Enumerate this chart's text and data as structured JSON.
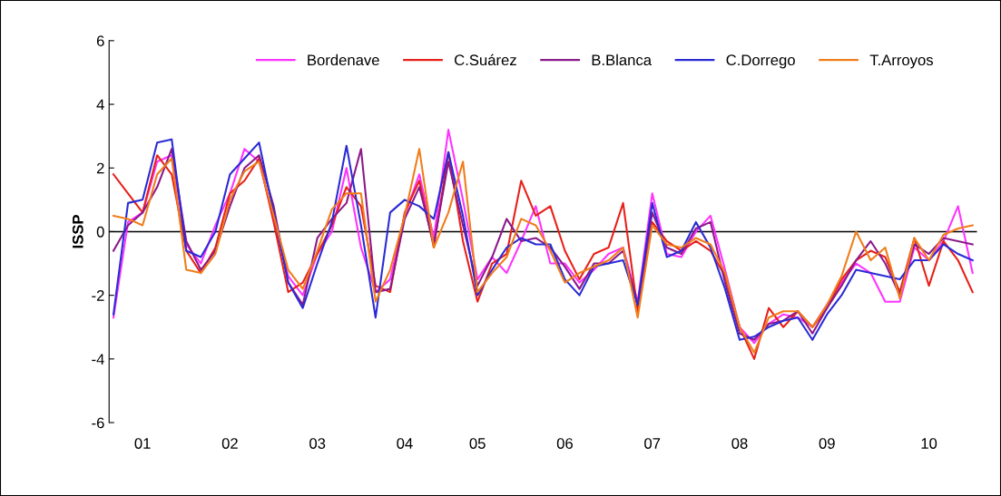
{
  "chart_data": {
    "type": "line",
    "ylabel": "ISSP",
    "categories": [
      null,
      null,
      "01",
      null,
      null,
      null,
      null,
      null,
      "02",
      null,
      null,
      null,
      null,
      null,
      "03",
      null,
      null,
      null,
      null,
      null,
      "04",
      null,
      null,
      null,
      null,
      "05",
      null,
      null,
      null,
      null,
      null,
      "06",
      null,
      null,
      null,
      null,
      null,
      "07",
      null,
      null,
      null,
      null,
      null,
      "08",
      null,
      null,
      null,
      null,
      null,
      "09",
      null,
      null,
      null,
      null,
      null,
      null,
      "10",
      null,
      null,
      null
    ],
    "series": [
      {
        "name": "Bordenave",
        "color": "#ff33ff",
        "values": [
          -2.7,
          0.3,
          0.6,
          2.2,
          2.4,
          -0.4,
          -1.0,
          0.2,
          1.2,
          2.6,
          2.2,
          0.4,
          -1.4,
          -2.0,
          -0.7,
          0.0,
          2.0,
          -0.5,
          -1.9,
          -1.5,
          0.5,
          1.8,
          -0.2,
          3.2,
          1.0,
          -1.5,
          -0.8,
          -1.3,
          -0.3,
          0.8,
          -1.0,
          -1.0,
          -1.6,
          -1.2,
          -0.7,
          -0.5,
          -2.2,
          1.2,
          -0.7,
          -0.8,
          0.0,
          0.5,
          -1.2,
          -3.0,
          -3.5,
          -2.9,
          -2.6,
          -2.7,
          -3.0,
          -2.3,
          -1.6,
          -1.0,
          -1.3,
          -2.2,
          -2.2,
          -0.5,
          -0.9,
          -0.3,
          0.8,
          -1.3
        ]
      },
      {
        "name": "C.Suárez",
        "color": "#e8201a",
        "values": [
          1.8,
          1.2,
          0.6,
          2.4,
          1.8,
          -0.6,
          -1.3,
          -0.5,
          1.2,
          1.6,
          2.3,
          0.3,
          -1.9,
          -1.6,
          -0.7,
          0.2,
          1.4,
          0.8,
          -1.7,
          -1.9,
          0.6,
          1.6,
          -0.5,
          2.5,
          -0.3,
          -2.2,
          -1.0,
          -0.7,
          1.6,
          0.5,
          0.8,
          -0.6,
          -1.5,
          -0.7,
          -0.5,
          0.9,
          -2.5,
          0.3,
          -0.3,
          -0.6,
          -0.3,
          -0.6,
          -1.4,
          -3.0,
          -4.0,
          -2.4,
          -3.0,
          -2.5,
          -3.0,
          -2.4,
          -1.5,
          -0.9,
          -0.6,
          -0.8,
          -1.9,
          -0.2,
          -1.7,
          -0.3,
          -0.9,
          -1.9
        ]
      },
      {
        "name": "B.Blanca",
        "color": "#8b1a8b",
        "values": [
          -0.6,
          0.2,
          0.6,
          1.4,
          2.6,
          -0.3,
          -1.2,
          -0.6,
          0.8,
          2.0,
          2.4,
          0.8,
          -1.6,
          -2.3,
          -0.2,
          0.4,
          0.9,
          2.6,
          -1.9,
          -1.8,
          0.4,
          1.4,
          -0.4,
          2.2,
          0.2,
          -1.7,
          -0.8,
          0.4,
          -0.3,
          -0.2,
          -0.5,
          -1.1,
          -1.8,
          -1.0,
          -1.0,
          -0.6,
          -2.3,
          0.6,
          -0.5,
          -0.7,
          0.1,
          0.3,
          -1.6,
          -3.2,
          -3.4,
          -2.9,
          -2.8,
          -2.5,
          -3.2,
          -2.4,
          -1.7,
          -0.9,
          -0.3,
          -1.0,
          -2.0,
          -0.4,
          -0.7,
          -0.2,
          -0.3,
          -0.4
        ]
      },
      {
        "name": "C.Dorrego",
        "color": "#2b2bd6",
        "values": [
          -2.6,
          0.9,
          1.0,
          2.8,
          2.9,
          -0.6,
          -0.8,
          0.0,
          1.8,
          2.3,
          2.8,
          0.6,
          -1.6,
          -2.4,
          -1.0,
          0.3,
          2.7,
          0.2,
          -2.7,
          0.6,
          1.0,
          0.8,
          0.4,
          2.5,
          0.5,
          -2.0,
          -1.2,
          -0.5,
          -0.2,
          -0.4,
          -0.4,
          -1.5,
          -2.0,
          -1.1,
          -1.0,
          -0.9,
          -2.3,
          0.9,
          -0.8,
          -0.6,
          0.3,
          -0.5,
          -1.8,
          -3.4,
          -3.3,
          -3.0,
          -2.8,
          -2.7,
          -3.4,
          -2.6,
          -2.0,
          -1.2,
          -1.3,
          -1.4,
          -1.5,
          -0.9,
          -0.9,
          -0.4,
          -0.7,
          -0.9
        ]
      },
      {
        "name": "T.Arroyos",
        "color": "#f07d1a",
        "values": [
          0.5,
          0.4,
          0.2,
          1.8,
          2.3,
          -1.2,
          -1.3,
          -0.7,
          1.0,
          1.9,
          2.2,
          0.5,
          -1.2,
          -1.8,
          -0.6,
          0.7,
          1.2,
          1.2,
          -2.2,
          -1.2,
          0.5,
          2.6,
          -0.5,
          0.6,
          2.2,
          -1.9,
          -1.3,
          -0.8,
          0.4,
          0.2,
          -0.6,
          -1.6,
          -1.3,
          -1.1,
          -0.9,
          -0.5,
          -2.7,
          0.2,
          -0.4,
          -0.5,
          -0.2,
          -0.4,
          -1.3,
          -3.0,
          -3.8,
          -2.7,
          -2.5,
          -2.5,
          -3.0,
          -2.3,
          -1.4,
          0.0,
          -0.9,
          -0.5,
          -2.1,
          -0.2,
          -0.9,
          -0.1,
          0.1,
          0.2
        ]
      }
    ],
    "ylim": [
      -6,
      6
    ],
    "yticks": [
      -6,
      -4,
      -2,
      0,
      2,
      4,
      6
    ],
    "ref_lines": [
      {
        "axis": "y",
        "value": 0,
        "color": "#000000",
        "line_style": "solid"
      }
    ],
    "grid": false,
    "legend": "top",
    "marker": "none",
    "line_style": "solid"
  }
}
